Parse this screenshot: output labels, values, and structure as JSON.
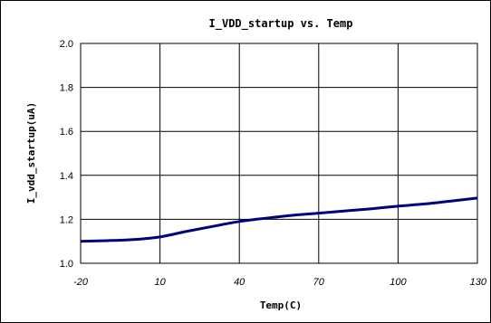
{
  "chart_data": {
    "type": "line",
    "title": "I_VDD_startup vs. Temp",
    "xlabel": "Temp(C)",
    "ylabel": "I_vdd_startup(uA)",
    "xlim": [
      -20,
      130
    ],
    "ylim": [
      1.0,
      2.0
    ],
    "x_ticks": [
      "-20",
      "10",
      "40",
      "70",
      "100",
      "130"
    ],
    "y_ticks": [
      "1.0",
      "1.2",
      "1.4",
      "1.6",
      "1.8",
      "2.0"
    ],
    "grid": true,
    "series": [
      {
        "color": "#000080",
        "x": [
          -20,
          -10,
          0,
          10,
          20,
          30,
          40,
          50,
          60,
          70,
          80,
          90,
          100,
          110,
          120,
          130
        ],
        "y": [
          1.1,
          1.103,
          1.108,
          1.12,
          1.145,
          1.168,
          1.19,
          1.205,
          1.218,
          1.228,
          1.238,
          1.248,
          1.26,
          1.27,
          1.283,
          1.297
        ]
      }
    ]
  }
}
